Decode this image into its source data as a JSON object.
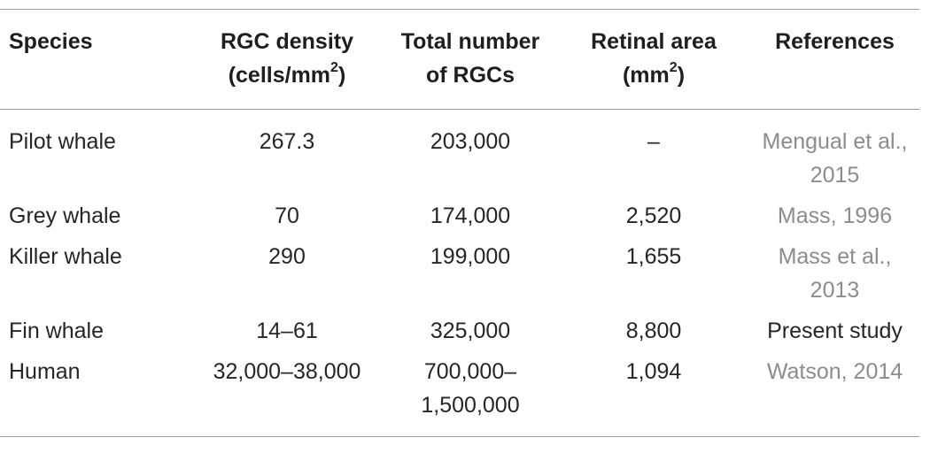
{
  "table": {
    "headers": {
      "species": "Species",
      "density_line1": "RGC density",
      "density_line2_pre": "(cells/mm",
      "density_line2_sup": "2",
      "density_line2_post": ")",
      "total_line1": "Total number",
      "total_line2": "of RGCs",
      "area_line1": "Retinal area",
      "area_line2_pre": "(mm",
      "area_line2_sup": "2",
      "area_line2_post": ")",
      "references": "References"
    },
    "rows": [
      {
        "species": "Pilot whale",
        "density": "267.3",
        "total_line1": "203,000",
        "total_line2": "",
        "area": "–",
        "ref_line1": "Mengual et al.,",
        "ref_line2": "2015",
        "ref_style": "grey"
      },
      {
        "species": "Grey whale",
        "density": "70",
        "total_line1": "174,000",
        "total_line2": "",
        "area": "2,520",
        "ref_line1": "Mass, 1996",
        "ref_line2": "",
        "ref_style": "grey"
      },
      {
        "species": "Killer whale",
        "density": "290",
        "total_line1": "199,000",
        "total_line2": "",
        "area": "1,655",
        "ref_line1": "Mass et al.,",
        "ref_line2": "2013",
        "ref_style": "grey"
      },
      {
        "species": "Fin whale",
        "density": "14–61",
        "total_line1": "325,000",
        "total_line2": "",
        "area": "8,800",
        "ref_line1": "Present study",
        "ref_line2": "",
        "ref_style": "dark"
      },
      {
        "species": "Human",
        "density": "32,000–38,000",
        "total_line1": "700,000–",
        "total_line2": "1,500,000",
        "area": "1,094",
        "ref_line1": "Watson, 2014",
        "ref_line2": "",
        "ref_style": "grey"
      }
    ]
  },
  "colors": {
    "rule": "#9a9a9a",
    "text": "#262626",
    "reference_link": "#8c8c8c"
  }
}
